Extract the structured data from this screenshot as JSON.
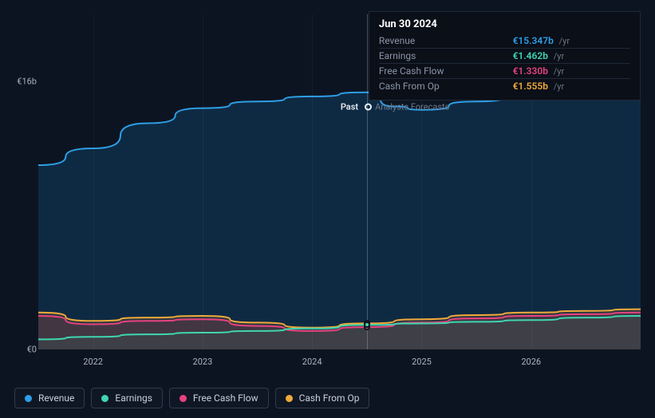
{
  "chart": {
    "type": "area",
    "background_color": "#0d1421",
    "grid_color": "rgba(255,255,255,0.04)",
    "text_color": "#a8b2c0",
    "currency_symbol": "€",
    "value_unit": "b",
    "y_axis": {
      "min": 0,
      "max": 20,
      "ticks": [
        {
          "value": 0,
          "label": "€0"
        },
        {
          "value": 16,
          "label": "€16b"
        }
      ]
    },
    "x_axis": {
      "min": 2021.5,
      "max": 2027,
      "ticks": [
        {
          "value": 2022,
          "label": "2022"
        },
        {
          "value": 2023,
          "label": "2023"
        },
        {
          "value": 2024,
          "label": "2024"
        },
        {
          "value": 2025,
          "label": "2025"
        },
        {
          "value": 2026,
          "label": "2026"
        }
      ]
    },
    "cursor_x": 2024.5,
    "past_label": "Past",
    "forecast_label": "Analysts Forecasts",
    "series": [
      {
        "id": "revenue",
        "label": "Revenue",
        "color": "#2e9fe6",
        "fill": "rgba(17,60,96,0.55)",
        "line_width": 2,
        "points": [
          [
            2021.5,
            11.0
          ],
          [
            2022.0,
            12.0
          ],
          [
            2022.5,
            13.5
          ],
          [
            2023.0,
            14.4
          ],
          [
            2023.5,
            14.8
          ],
          [
            2024.0,
            15.1
          ],
          [
            2024.5,
            15.347
          ],
          [
            2024.75,
            14.5
          ],
          [
            2025.0,
            14.3
          ],
          [
            2025.5,
            14.8
          ],
          [
            2026.0,
            15.3
          ],
          [
            2026.5,
            15.8
          ],
          [
            2027.0,
            16.0
          ]
        ]
      },
      {
        "id": "cash_from_op",
        "label": "Cash From Op",
        "color": "#f0aa3a",
        "fill": "rgba(150,100,50,0.25)",
        "line_width": 2,
        "points": [
          [
            2021.5,
            2.2
          ],
          [
            2022.0,
            1.7
          ],
          [
            2022.5,
            1.9
          ],
          [
            2023.0,
            2.0
          ],
          [
            2023.5,
            1.6
          ],
          [
            2024.0,
            1.3
          ],
          [
            2024.5,
            1.555
          ],
          [
            2025.0,
            1.8
          ],
          [
            2025.5,
            2.05
          ],
          [
            2026.0,
            2.2
          ],
          [
            2026.5,
            2.3
          ],
          [
            2027.0,
            2.4
          ]
        ]
      },
      {
        "id": "free_cash_flow",
        "label": "Free Cash Flow",
        "color": "#e6427f",
        "fill": "rgba(140,50,80,0.2)",
        "line_width": 2,
        "points": [
          [
            2021.5,
            2.0
          ],
          [
            2022.0,
            1.5
          ],
          [
            2022.5,
            1.7
          ],
          [
            2023.0,
            1.8
          ],
          [
            2023.5,
            1.4
          ],
          [
            2024.0,
            1.1
          ],
          [
            2024.5,
            1.33
          ],
          [
            2025.0,
            1.6
          ],
          [
            2025.5,
            1.85
          ],
          [
            2026.0,
            2.0
          ],
          [
            2026.5,
            2.1
          ],
          [
            2027.0,
            2.2
          ]
        ]
      },
      {
        "id": "earnings",
        "label": "Earnings",
        "color": "#3fd6b0",
        "fill": "rgba(40,120,100,0.15)",
        "line_width": 2,
        "points": [
          [
            2021.5,
            0.6
          ],
          [
            2022.0,
            0.75
          ],
          [
            2022.5,
            0.9
          ],
          [
            2023.0,
            1.0
          ],
          [
            2023.5,
            1.1
          ],
          [
            2024.0,
            1.25
          ],
          [
            2024.5,
            1.462
          ],
          [
            2025.0,
            1.55
          ],
          [
            2025.5,
            1.65
          ],
          [
            2026.0,
            1.75
          ],
          [
            2026.5,
            1.9
          ],
          [
            2027.0,
            2.0
          ]
        ]
      }
    ],
    "legend_order": [
      "revenue",
      "earnings",
      "free_cash_flow",
      "cash_from_op"
    ]
  },
  "tooltip": {
    "title": "Jun 30 2024",
    "unit_suffix": "/yr",
    "rows": [
      {
        "label": "Revenue",
        "value": "€15.347b",
        "color": "#2e9fe6"
      },
      {
        "label": "Earnings",
        "value": "€1.462b",
        "color": "#3fd6b0"
      },
      {
        "label": "Free Cash Flow",
        "value": "€1.330b",
        "color": "#e6427f"
      },
      {
        "label": "Cash From Op",
        "value": "€1.555b",
        "color": "#f0aa3a"
      }
    ]
  }
}
